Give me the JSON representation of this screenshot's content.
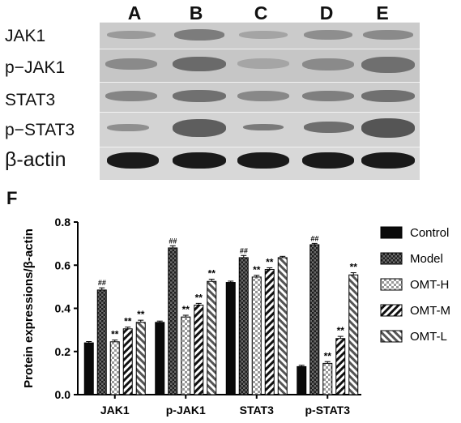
{
  "blot": {
    "lanes": [
      "A",
      "B",
      "C",
      "D",
      "E"
    ],
    "rows": [
      "JAK1",
      "p−JAK1",
      "STAT3",
      "p−STAT3",
      "β-actin"
    ]
  },
  "panel_label": "F",
  "chart_data": {
    "type": "bar",
    "ylabel": "Protein expressions/β-actin",
    "ylim": [
      0,
      0.8
    ],
    "yticks": [
      "0.0",
      "0.2",
      "0.4",
      "0.6",
      "0.8"
    ],
    "categories": [
      "JAK1",
      "p-JAK1",
      "STAT3",
      "p-STAT3"
    ],
    "series": [
      {
        "name": "Control",
        "values": [
          0.24,
          0.335,
          0.52,
          0.13
        ],
        "errors": [
          0.006,
          0.006,
          0.006,
          0.006
        ],
        "marks": [
          "",
          "",
          "",
          ""
        ]
      },
      {
        "name": "Model",
        "values": [
          0.485,
          0.68,
          0.635,
          0.695
        ],
        "errors": [
          0.01,
          0.01,
          0.01,
          0.006
        ],
        "marks": [
          "##",
          "##",
          "##",
          "##"
        ]
      },
      {
        "name": "OMT-H",
        "values": [
          0.245,
          0.36,
          0.545,
          0.145
        ],
        "errors": [
          0.008,
          0.008,
          0.008,
          0.008
        ],
        "marks": [
          "**",
          "**",
          "**",
          "**"
        ]
      },
      {
        "name": "OMT-M",
        "values": [
          0.305,
          0.415,
          0.58,
          0.26
        ],
        "errors": [
          0.008,
          0.008,
          0.008,
          0.01
        ],
        "marks": [
          "**",
          "**",
          "**",
          "**"
        ]
      },
      {
        "name": "OMT-L",
        "values": [
          0.335,
          0.525,
          0.635,
          0.555
        ],
        "errors": [
          0.01,
          0.01,
          0.006,
          0.01
        ],
        "marks": [
          "**",
          "**",
          "",
          "**"
        ]
      }
    ],
    "legend_position": "right",
    "grid": false
  }
}
